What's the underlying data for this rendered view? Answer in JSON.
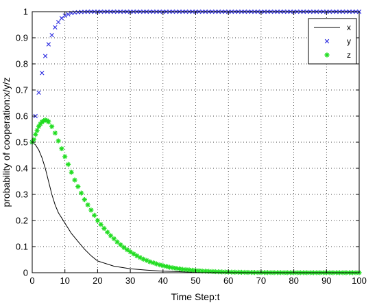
{
  "chart_data": {
    "type": "line",
    "xlabel": "Time Step:t",
    "ylabel": "probability of cooperation:x/y/z",
    "xlim": [
      0,
      100
    ],
    "ylim": [
      0,
      1
    ],
    "xticks": [
      0,
      10,
      20,
      30,
      40,
      50,
      60,
      70,
      80,
      90,
      100
    ],
    "yticks": [
      0,
      0.1,
      0.2,
      0.3,
      0.4,
      0.5,
      0.6,
      0.7,
      0.8,
      0.9,
      1
    ],
    "grid": true,
    "legend_position": "top-right",
    "series": [
      {
        "name": "x",
        "style": "solid-line",
        "color": "#000000",
        "x": [
          0,
          1,
          2,
          3,
          4,
          5,
          6,
          7,
          8,
          9,
          10,
          12,
          14,
          16,
          18,
          20,
          25,
          30,
          35,
          40,
          45,
          50,
          60,
          70,
          80,
          90,
          100
        ],
        "y": [
          0.5,
          0.49,
          0.47,
          0.44,
          0.4,
          0.35,
          0.3,
          0.26,
          0.23,
          0.21,
          0.19,
          0.15,
          0.12,
          0.09,
          0.065,
          0.045,
          0.025,
          0.015,
          0.01,
          0.006,
          0.004,
          0.002,
          0.001,
          0.0005,
          0.0003,
          0.0002,
          0.0001
        ]
      },
      {
        "name": "y",
        "style": "x-marker",
        "color": "#2a2ae0",
        "x": [
          0,
          1,
          2,
          3,
          4,
          5,
          6,
          7,
          8,
          9,
          10,
          11,
          12,
          13,
          14,
          15,
          16,
          17,
          18,
          19,
          20,
          21,
          22,
          23,
          24,
          25,
          26,
          27,
          28,
          29,
          30,
          31,
          32,
          33,
          34,
          35,
          36,
          37,
          38,
          39,
          40,
          41,
          42,
          43,
          44,
          45,
          46,
          47,
          48,
          49,
          50,
          51,
          52,
          53,
          54,
          55,
          56,
          57,
          58,
          59,
          60,
          61,
          62,
          63,
          64,
          65,
          66,
          67,
          68,
          69,
          70,
          71,
          72,
          73,
          74,
          75,
          76,
          77,
          78,
          79,
          80,
          81,
          82,
          83,
          84,
          85,
          86,
          87,
          88,
          89,
          90,
          91,
          92,
          93,
          94,
          95,
          96,
          97,
          98,
          99,
          100
        ],
        "y": [
          0.5,
          0.6,
          0.69,
          0.765,
          0.83,
          0.875,
          0.91,
          0.94,
          0.96,
          0.975,
          0.985,
          0.99,
          0.995,
          0.997,
          0.998,
          0.999,
          0.9995,
          1,
          1,
          1,
          1,
          1,
          1,
          1,
          1,
          1,
          1,
          1,
          1,
          1,
          1,
          1,
          1,
          1,
          1,
          1,
          1,
          1,
          1,
          1,
          1,
          1,
          1,
          1,
          1,
          1,
          1,
          1,
          1,
          1,
          1,
          1,
          1,
          1,
          1,
          1,
          1,
          1,
          1,
          1,
          1,
          1,
          1,
          1,
          1,
          1,
          1,
          1,
          1,
          1,
          1,
          1,
          1,
          1,
          1,
          1,
          1,
          1,
          1,
          1,
          1,
          1,
          1,
          1,
          1,
          1,
          1,
          1,
          1,
          1,
          1,
          1,
          1,
          1,
          1,
          1,
          1,
          1,
          1,
          1,
          1
        ]
      },
      {
        "name": "z",
        "style": "star-marker",
        "color": "#22dd22",
        "x": [
          0,
          0.5,
          1,
          1.5,
          2,
          2.5,
          3,
          3.5,
          4,
          4.5,
          5,
          6,
          7,
          8,
          9,
          10,
          11,
          12,
          13,
          14,
          15,
          16,
          17,
          18,
          19,
          20,
          21,
          22,
          23,
          24,
          25,
          26,
          27,
          28,
          29,
          30,
          31,
          32,
          33,
          34,
          35,
          36,
          37,
          38,
          39,
          40,
          41,
          42,
          43,
          44,
          45,
          46,
          47,
          48,
          49,
          50,
          51,
          52,
          53,
          54,
          55,
          56,
          57,
          58,
          59,
          60,
          61,
          62,
          63,
          64,
          65,
          66,
          67,
          68,
          69,
          70,
          71,
          72,
          73,
          74,
          75,
          76,
          77,
          78,
          79,
          80,
          81,
          82,
          83,
          84,
          85,
          86,
          87,
          88,
          89,
          90,
          91,
          92,
          93,
          94,
          95,
          96,
          97,
          98,
          99,
          100
        ],
        "y": [
          0.5,
          0.51,
          0.53,
          0.545,
          0.56,
          0.57,
          0.578,
          0.582,
          0.585,
          0.583,
          0.578,
          0.56,
          0.535,
          0.505,
          0.475,
          0.445,
          0.415,
          0.385,
          0.355,
          0.33,
          0.305,
          0.28,
          0.26,
          0.24,
          0.22,
          0.2,
          0.185,
          0.17,
          0.155,
          0.142,
          0.13,
          0.118,
          0.107,
          0.097,
          0.088,
          0.08,
          0.072,
          0.065,
          0.058,
          0.052,
          0.047,
          0.042,
          0.038,
          0.034,
          0.03,
          0.027,
          0.024,
          0.021,
          0.019,
          0.017,
          0.015,
          0.013,
          0.012,
          0.011,
          0.0095,
          0.0085,
          0.0075,
          0.0065,
          0.006,
          0.0052,
          0.0046,
          0.004,
          0.0036,
          0.0032,
          0.0028,
          0.0025,
          0.0022,
          0.002,
          0.0018,
          0.0016,
          0.0014,
          0.0012,
          0.0011,
          0.001,
          0.0009,
          0.0008,
          0.0007,
          0.0006,
          0.0005,
          0.0005,
          0.0004,
          0.0004,
          0.0003,
          0.0003,
          0.0003,
          0.0002,
          0.0002,
          0.0002,
          0.0002,
          0.0001,
          0.0001,
          0.0001,
          0.0001,
          0.0001,
          0.0001,
          0.0001,
          0.0001,
          0.0001,
          0.0001,
          0.0001,
          0.0001,
          0.0001,
          0.0001,
          0.0001,
          0.0001,
          0.0001
        ]
      }
    ]
  }
}
